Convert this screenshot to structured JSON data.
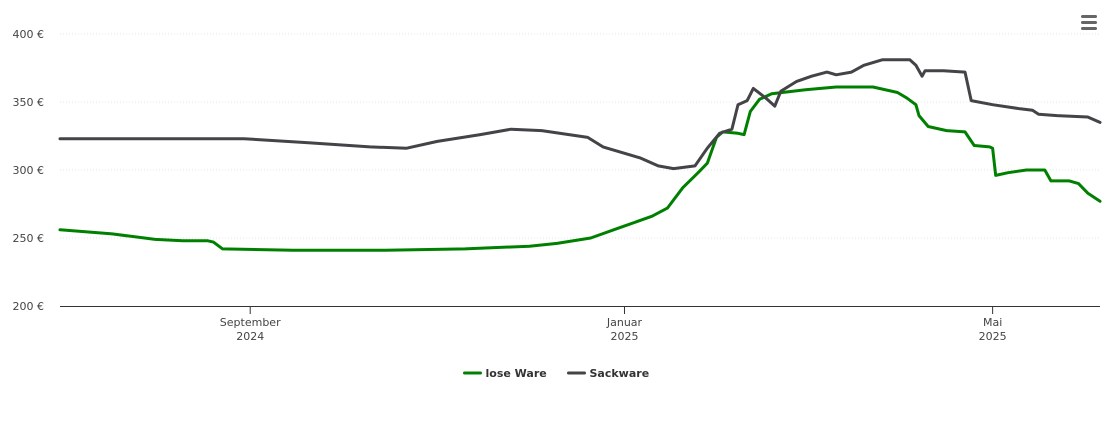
{
  "chart_data": {
    "type": "line",
    "title": "",
    "xlabel": "",
    "ylabel": "",
    "ylim": [
      200,
      400
    ],
    "y_ticks": [
      "200 €",
      "250 €",
      "300 €",
      "350 €",
      "400 €"
    ],
    "y_tick_values": [
      200,
      250,
      300,
      350,
      400
    ],
    "xlim": [
      "2024-07-01",
      "2025-06-05"
    ],
    "x_ticks": [
      {
        "date": "2024-09-01",
        "month": "September",
        "year": "2024"
      },
      {
        "date": "2025-01-01",
        "month": "Januar",
        "year": "2025"
      },
      {
        "date": "2025-05-01",
        "month": "Mai",
        "year": "2025"
      }
    ],
    "grid": true,
    "legend_position": "bottom-center",
    "series": [
      {
        "name": "lose Ware",
        "color": "#008000",
        "points": [
          [
            "2024-07-01",
            256
          ],
          [
            "2024-07-18",
            253
          ],
          [
            "2024-08-01",
            249
          ],
          [
            "2024-08-10",
            248
          ],
          [
            "2024-08-18",
            248
          ],
          [
            "2024-08-20",
            247
          ],
          [
            "2024-08-23",
            242
          ],
          [
            "2024-09-15",
            241
          ],
          [
            "2024-10-15",
            241
          ],
          [
            "2024-11-10",
            242
          ],
          [
            "2024-12-01",
            244
          ],
          [
            "2024-12-10",
            246
          ],
          [
            "2024-12-21",
            250
          ],
          [
            "2024-12-31",
            258
          ],
          [
            "2025-01-10",
            266
          ],
          [
            "2025-01-15",
            272
          ],
          [
            "2025-01-20",
            287
          ],
          [
            "2025-01-25",
            298
          ],
          [
            "2025-01-28",
            305
          ],
          [
            "2025-01-31",
            324
          ],
          [
            "2025-02-02",
            328
          ],
          [
            "2025-02-07",
            327
          ],
          [
            "2025-02-09",
            326
          ],
          [
            "2025-02-11",
            343
          ],
          [
            "2025-02-14",
            352
          ],
          [
            "2025-02-18",
            356
          ],
          [
            "2025-03-01",
            359
          ],
          [
            "2025-03-11",
            361
          ],
          [
            "2025-03-23",
            361
          ],
          [
            "2025-03-31",
            357
          ],
          [
            "2025-04-03",
            353
          ],
          [
            "2025-04-06",
            348
          ],
          [
            "2025-04-07",
            340
          ],
          [
            "2025-04-10",
            332
          ],
          [
            "2025-04-16",
            329
          ],
          [
            "2025-04-22",
            328
          ],
          [
            "2025-04-25",
            318
          ],
          [
            "2025-04-30",
            317
          ],
          [
            "2025-05-01",
            316
          ],
          [
            "2025-05-02",
            296
          ],
          [
            "2025-05-06",
            298
          ],
          [
            "2025-05-12",
            300
          ],
          [
            "2025-05-18",
            300
          ],
          [
            "2025-05-20",
            292
          ],
          [
            "2025-05-26",
            292
          ],
          [
            "2025-05-29",
            290
          ],
          [
            "2025-06-01",
            283
          ],
          [
            "2025-06-05",
            277
          ]
        ]
      },
      {
        "name": "Sackware",
        "color": "#434348",
        "points": [
          [
            "2024-07-01",
            323
          ],
          [
            "2024-08-01",
            323
          ],
          [
            "2024-08-30",
            323
          ],
          [
            "2024-09-20",
            320
          ],
          [
            "2024-10-10",
            317
          ],
          [
            "2024-10-22",
            316
          ],
          [
            "2024-11-01",
            321
          ],
          [
            "2024-11-15",
            326
          ],
          [
            "2024-11-25",
            330
          ],
          [
            "2024-12-05",
            329
          ],
          [
            "2024-12-20",
            324
          ],
          [
            "2024-12-25",
            317
          ],
          [
            "2025-01-06",
            309
          ],
          [
            "2025-01-12",
            303
          ],
          [
            "2025-01-17",
            301
          ],
          [
            "2025-01-24",
            303
          ],
          [
            "2025-01-28",
            316
          ],
          [
            "2025-02-01",
            327
          ],
          [
            "2025-02-05",
            330
          ],
          [
            "2025-02-07",
            348
          ],
          [
            "2025-02-10",
            351
          ],
          [
            "2025-02-12",
            360
          ],
          [
            "2025-02-16",
            353
          ],
          [
            "2025-02-19",
            347
          ],
          [
            "2025-02-21",
            358
          ],
          [
            "2025-02-26",
            365
          ],
          [
            "2025-03-03",
            369
          ],
          [
            "2025-03-08",
            372
          ],
          [
            "2025-03-11",
            370
          ],
          [
            "2025-03-16",
            372
          ],
          [
            "2025-03-20",
            377
          ],
          [
            "2025-03-26",
            381
          ],
          [
            "2025-04-04",
            381
          ],
          [
            "2025-04-06",
            377
          ],
          [
            "2025-04-08",
            369
          ],
          [
            "2025-04-09",
            373
          ],
          [
            "2025-04-15",
            373
          ],
          [
            "2025-04-22",
            372
          ],
          [
            "2025-04-24",
            351
          ],
          [
            "2025-05-01",
            348
          ],
          [
            "2025-05-10",
            345
          ],
          [
            "2025-05-14",
            344
          ],
          [
            "2025-05-16",
            341
          ],
          [
            "2025-05-22",
            340
          ],
          [
            "2025-06-01",
            339
          ],
          [
            "2025-06-05",
            335
          ]
        ]
      }
    ]
  },
  "menu": {
    "icon": "hamburger-menu-icon"
  }
}
